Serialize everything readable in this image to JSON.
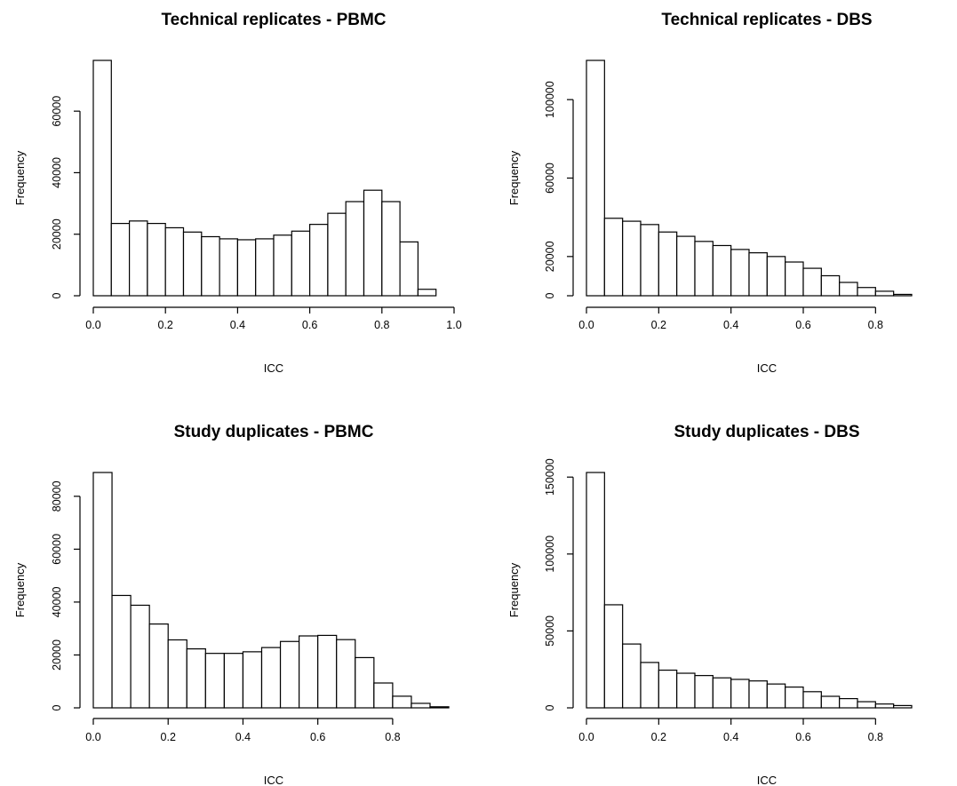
{
  "chart_data": [
    {
      "type": "bar",
      "title": "Technical replicates - PBMC",
      "xlabel": "ICC",
      "ylabel": "Frequency",
      "bin_width": 0.05,
      "xlim": [
        0,
        1.0
      ],
      "ylim": [
        0,
        76500
      ],
      "xticks": [
        0.0,
        0.2,
        0.4,
        0.6,
        0.8,
        1.0
      ],
      "xtick_labels": [
        "0.0",
        "0.2",
        "0.4",
        "0.6",
        "0.8",
        "1.0"
      ],
      "yticks": [
        0,
        20000,
        40000,
        60000
      ],
      "ytick_labels": [
        "0",
        "20000",
        "40000",
        "60000"
      ],
      "bins_start": [
        0.0,
        0.05,
        0.1,
        0.15,
        0.2,
        0.25,
        0.3,
        0.35,
        0.4,
        0.45,
        0.5,
        0.55,
        0.6,
        0.65,
        0.7,
        0.75,
        0.8,
        0.85,
        0.9
      ],
      "values": [
        76500,
        23500,
        24300,
        23500,
        22100,
        20700,
        19200,
        18500,
        18200,
        18500,
        19700,
        21000,
        23200,
        26800,
        30600,
        34300,
        30600,
        17500,
        2100
      ]
    },
    {
      "type": "bar",
      "title": "Technical replicates - DBS",
      "xlabel": "ICC",
      "ylabel": "Frequency",
      "bin_width": 0.05,
      "xlim": [
        0,
        0.9
      ],
      "ylim": [
        0,
        120000
      ],
      "xticks": [
        0.0,
        0.2,
        0.4,
        0.6,
        0.8
      ],
      "xtick_labels": [
        "0.0",
        "0.2",
        "0.4",
        "0.6",
        "0.8"
      ],
      "yticks": [
        0,
        20000,
        60000,
        100000
      ],
      "ytick_labels": [
        "0",
        "20000",
        "60000",
        "100000"
      ],
      "bins_start": [
        0.0,
        0.05,
        0.1,
        0.15,
        0.2,
        0.25,
        0.3,
        0.35,
        0.4,
        0.45,
        0.5,
        0.55,
        0.6,
        0.65,
        0.7,
        0.75,
        0.8,
        0.85
      ],
      "values": [
        120000,
        39500,
        38000,
        36300,
        32500,
        30300,
        27700,
        25600,
        23600,
        21900,
        20000,
        17200,
        14000,
        10200,
        6800,
        4200,
        2300,
        700
      ]
    },
    {
      "type": "bar",
      "title": "Study duplicates - PBMC",
      "xlabel": "ICC",
      "ylabel": "Frequency",
      "bin_width": 0.05,
      "xlim": [
        0,
        0.9
      ],
      "ylim": [
        0,
        89000
      ],
      "xticks": [
        0.0,
        0.2,
        0.4,
        0.6,
        0.8
      ],
      "xtick_labels": [
        "0.0",
        "0.2",
        "0.4",
        "0.6",
        "0.8"
      ],
      "yticks": [
        0,
        20000,
        40000,
        60000,
        80000
      ],
      "ytick_labels": [
        "0",
        "20000",
        "40000",
        "60000",
        "80000"
      ],
      "bins_start": [
        0.0,
        0.05,
        0.1,
        0.15,
        0.2,
        0.25,
        0.3,
        0.35,
        0.4,
        0.45,
        0.5,
        0.55,
        0.6,
        0.65,
        0.7,
        0.75,
        0.8,
        0.85,
        0.9
      ],
      "values": [
        89000,
        42500,
        38800,
        31700,
        25700,
        22300,
        20600,
        20600,
        21200,
        22800,
        25100,
        27200,
        27400,
        25800,
        19000,
        9400,
        4400,
        1700,
        400
      ]
    },
    {
      "type": "bar",
      "title": "Study duplicates - DBS",
      "xlabel": "ICC",
      "ylabel": "Frequency",
      "bin_width": 0.05,
      "xlim": [
        0,
        0.9
      ],
      "ylim": [
        0,
        153000
      ],
      "xticks": [
        0.0,
        0.2,
        0.4,
        0.6,
        0.8
      ],
      "xtick_labels": [
        "0.0",
        "0.2",
        "0.4",
        "0.6",
        "0.8"
      ],
      "yticks": [
        0,
        50000,
        100000,
        150000
      ],
      "ytick_labels": [
        "0",
        "50000",
        "100000",
        "150000"
      ],
      "bins_start": [
        0.0,
        0.05,
        0.1,
        0.15,
        0.2,
        0.25,
        0.3,
        0.35,
        0.4,
        0.45,
        0.5,
        0.55,
        0.6,
        0.65,
        0.7,
        0.75,
        0.8,
        0.85
      ],
      "values": [
        153000,
        67000,
        41500,
        29500,
        24500,
        22500,
        21000,
        19500,
        18500,
        17500,
        15500,
        13500,
        10500,
        7500,
        6000,
        4000,
        2500,
        1500
      ]
    }
  ]
}
